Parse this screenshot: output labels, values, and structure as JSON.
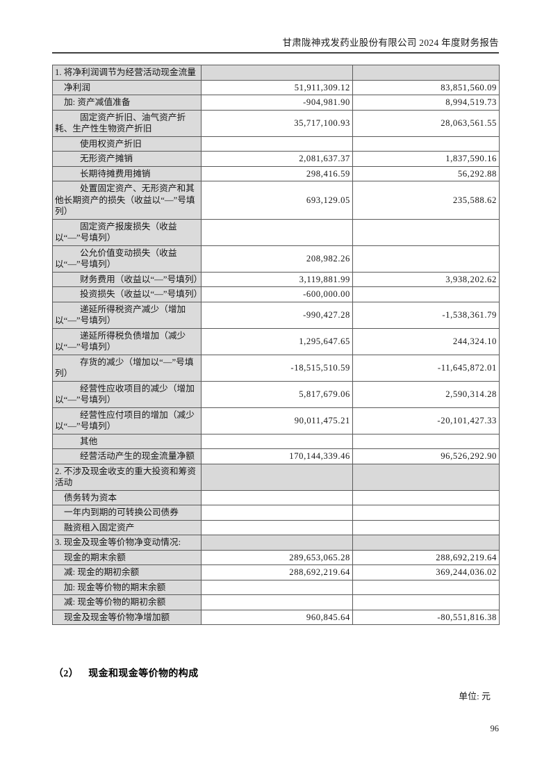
{
  "header": {
    "title": "甘肃陇神戎发药业股份有限公司 2024 年度财务报告"
  },
  "supplement_table": {
    "rows": [
      {
        "type": "section",
        "label": "1. 将净利润调节为经营活动现金流量",
        "current": "",
        "previous": ""
      },
      {
        "type": "l1",
        "label": "净利润",
        "current": "51,911,309.12",
        "previous": "83,851,560.09"
      },
      {
        "type": "l1",
        "label": "加: 资产减值准备",
        "current": "-904,981.90",
        "previous": "8,994,519.73"
      },
      {
        "type": "l2",
        "label": "固定资产折旧、油气资产折耗、生产性生物资产折旧",
        "current": "35,717,100.93",
        "previous": "28,063,561.55"
      },
      {
        "type": "l2",
        "label": "使用权资产折旧",
        "current": "",
        "previous": ""
      },
      {
        "type": "l2",
        "label": "无形资产摊销",
        "current": "2,081,637.37",
        "previous": "1,837,590.16"
      },
      {
        "type": "l2",
        "label": "长期待摊费用摊销",
        "current": "298,416.59",
        "previous": "56,292.88"
      },
      {
        "type": "l2",
        "label": "处置固定资产、无形资产和其他长期资产的损失（收益以“—”号填列）",
        "current": "693,129.05",
        "previous": "235,588.62"
      },
      {
        "type": "l2",
        "label": "固定资产报废损失（收益以“—”号填列）",
        "current": "",
        "previous": ""
      },
      {
        "type": "l2",
        "label": "公允价值变动损失（收益以“—”号填列）",
        "current": "208,982.26",
        "previous": ""
      },
      {
        "type": "l2",
        "label": "财务费用（收益以“—”号填列）",
        "current": "3,119,881.99",
        "previous": "3,938,202.62"
      },
      {
        "type": "l2",
        "label": "投资损失（收益以“—”号填列）",
        "current": "-600,000.00",
        "previous": ""
      },
      {
        "type": "l2",
        "label": "递延所得税资产减少（增加以“—”号填列）",
        "current": "-990,427.28",
        "previous": "-1,538,361.79"
      },
      {
        "type": "l2",
        "label": "递延所得税负债增加（减少以“—”号填列）",
        "current": "1,295,647.65",
        "previous": "244,324.10"
      },
      {
        "type": "l2",
        "label": "存货的减少（增加以“—”号填列）",
        "current": "-18,515,510.59",
        "previous": "-11,645,872.01"
      },
      {
        "type": "l2",
        "label": "经营性应收项目的减少（增加以“—”号填列）",
        "current": "5,817,679.06",
        "previous": "2,590,314.28"
      },
      {
        "type": "l2",
        "label": "经营性应付项目的增加（减少以“—”号填列）",
        "current": "90,011,475.21",
        "previous": "-20,101,427.33"
      },
      {
        "type": "l2",
        "label": "其他",
        "current": "",
        "previous": ""
      },
      {
        "type": "l2",
        "label": "经营活动产生的现金流量净额",
        "current": "170,144,339.46",
        "previous": "96,526,292.90"
      },
      {
        "type": "section",
        "label": "2. 不涉及现金收支的重大投资和筹资活动",
        "current": "",
        "previous": ""
      },
      {
        "type": "l1",
        "label": "债务转为资本",
        "current": "",
        "previous": ""
      },
      {
        "type": "l1",
        "label": "一年内到期的可转换公司债券",
        "current": "",
        "previous": ""
      },
      {
        "type": "l1",
        "label": "融资租入固定资产",
        "current": "",
        "previous": ""
      },
      {
        "type": "section",
        "label": "3. 现金及现金等价物净变动情况:",
        "current": "",
        "previous": ""
      },
      {
        "type": "l1",
        "label": "现金的期末余额",
        "current": "289,653,065.28",
        "previous": "288,692,219.64"
      },
      {
        "type": "l1",
        "label": "减: 现金的期初余额",
        "current": "288,692,219.64",
        "previous": "369,244,036.02"
      },
      {
        "type": "l1",
        "label": "加: 现金等价物的期末余额",
        "current": "",
        "previous": ""
      },
      {
        "type": "l1",
        "label": "减: 现金等价物的期初余额",
        "current": "",
        "previous": ""
      },
      {
        "type": "l1",
        "label": "现金及现金等价物净增加额",
        "current": "960,845.64",
        "previous": "-80,551,816.38"
      }
    ]
  },
  "footer": {
    "section_no": "（2）",
    "section_title": "现金和现金等价物的构成",
    "unit_label": "单位: 元",
    "page_number": "96"
  },
  "colors": {
    "cell_shading": "#dbdbdb",
    "section_row_shading": "#d9d9d9",
    "table_border": "#595959",
    "header_rule": "#3f3f3f"
  }
}
